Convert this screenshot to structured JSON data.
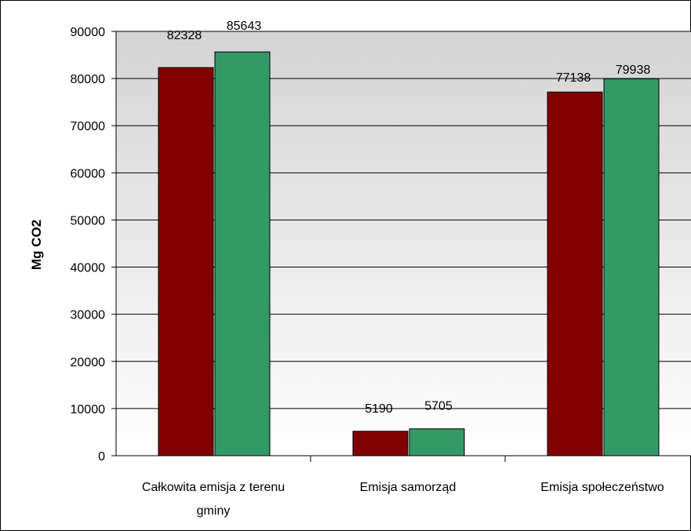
{
  "chart_data": {
    "type": "bar",
    "title": "",
    "xlabel": "",
    "ylabel": "Mg CO2",
    "ylim": [
      0,
      90000
    ],
    "ytick_step": 10000,
    "grid": true,
    "categories": [
      [
        "Całkowita emisja z terenu",
        "gminy"
      ],
      [
        "Emisja samorząd"
      ],
      [
        "Emisja społeczeństwo"
      ]
    ],
    "series": [
      {
        "values": [
          82328,
          5190,
          77138
        ],
        "color": "#800000"
      },
      {
        "values": [
          85643,
          5705,
          79938
        ],
        "color": "#339966"
      }
    ],
    "data_labels": [
      [
        "82328",
        "5190",
        "77138"
      ],
      [
        "85643",
        "5705",
        "79938"
      ]
    ],
    "background_gradient": [
      "#d4d4d4",
      "#ffffff"
    ]
  }
}
